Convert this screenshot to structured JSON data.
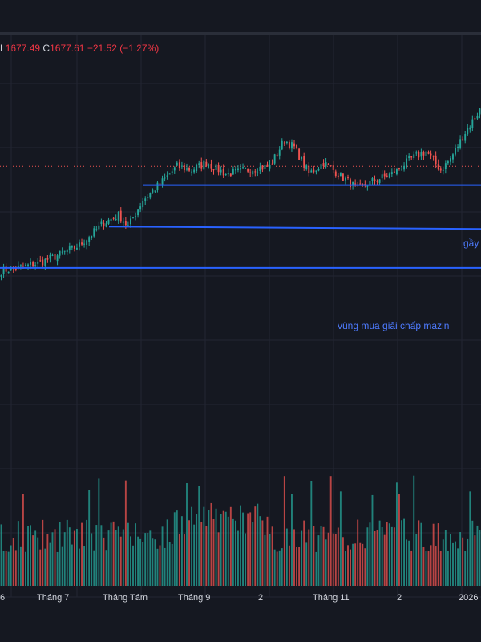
{
  "legend": {
    "low_key": "L",
    "low": "1677.49",
    "close_key": "C",
    "close": "1677.61",
    "change": "−21.52",
    "change_pct": "(−1.27%)"
  },
  "colors": {
    "background": "#151821",
    "up": "#26a69a",
    "down": "#ef5350",
    "lines": "#2962ff",
    "annotation": "#4e7bff"
  },
  "annotations": {
    "line1_label": "gầy",
    "line3_label": "vùng mua giải chấp mazin"
  },
  "chart_data": {
    "type": "candlestick",
    "x_ticks": [
      "6",
      "Tháng 7",
      "Tháng Tám",
      "Tháng 9",
      "2",
      "Tháng 11",
      "2",
      "2026"
    ],
    "y_range": [
      1150,
      1960
    ],
    "price_line": 1740,
    "horizontal_levels": [
      1690,
      1580,
      1470
    ],
    "waypoints": [
      [
        0,
        1462
      ],
      [
        8,
        1472
      ],
      [
        15,
        1482
      ],
      [
        22,
        1500
      ],
      [
        32,
        1530
      ],
      [
        42,
        1590
      ],
      [
        48,
        1610
      ],
      [
        52,
        1580
      ],
      [
        58,
        1650
      ],
      [
        66,
        1700
      ],
      [
        72,
        1740
      ],
      [
        78,
        1730
      ],
      [
        84,
        1750
      ],
      [
        92,
        1720
      ],
      [
        100,
        1730
      ],
      [
        110,
        1740
      ],
      [
        116,
        1810
      ],
      [
        120,
        1790
      ],
      [
        126,
        1720
      ],
      [
        132,
        1750
      ],
      [
        138,
        1720
      ],
      [
        146,
        1680
      ],
      [
        152,
        1700
      ],
      [
        160,
        1720
      ],
      [
        168,
        1760
      ],
      [
        174,
        1780
      ],
      [
        180,
        1730
      ],
      [
        184,
        1760
      ],
      [
        190,
        1830
      ],
      [
        196,
        1890
      ]
    ],
    "volume": {
      "min": 5,
      "max": 100
    }
  }
}
